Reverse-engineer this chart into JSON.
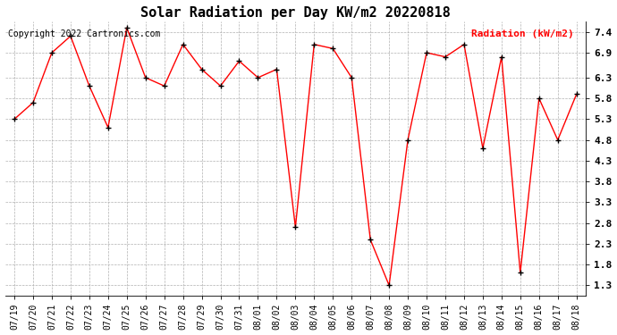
{
  "title": "Solar Radiation per Day KW/m2 20220818",
  "copyright_text": "Copyright 2022 Cartronics.com",
  "legend_label": "Radiation (kW/m2)",
  "dates": [
    "07/19",
    "07/20",
    "07/21",
    "07/22",
    "07/23",
    "07/24",
    "07/25",
    "07/26",
    "07/27",
    "07/28",
    "07/29",
    "07/30",
    "07/31",
    "08/01",
    "08/02",
    "08/03",
    "08/04",
    "08/05",
    "08/06",
    "08/07",
    "08/08",
    "08/09",
    "08/10",
    "08/11",
    "08/12",
    "08/13",
    "08/14",
    "08/15",
    "08/16",
    "08/17",
    "08/18"
  ],
  "values": [
    5.3,
    5.7,
    6.9,
    7.3,
    6.1,
    5.1,
    7.5,
    6.3,
    6.1,
    7.1,
    6.5,
    6.1,
    6.7,
    6.3,
    6.5,
    2.7,
    7.1,
    7.0,
    6.3,
    2.4,
    1.3,
    4.8,
    6.9,
    6.8,
    7.1,
    4.6,
    6.8,
    1.6,
    5.8,
    4.8,
    5.9
  ],
  "yticks": [
    1.3,
    1.8,
    2.3,
    2.8,
    3.3,
    3.8,
    4.3,
    4.8,
    5.3,
    5.8,
    6.3,
    6.9,
    7.4
  ],
  "ylim": [
    1.05,
    7.65
  ],
  "line_color": "red",
  "marker_color": "black",
  "grid_color": "#b0b0b0",
  "bg_color": "white",
  "title_fontsize": 11,
  "copyright_fontsize": 7,
  "legend_fontsize": 8,
  "tick_fontsize": 7,
  "ytick_fontsize": 8
}
